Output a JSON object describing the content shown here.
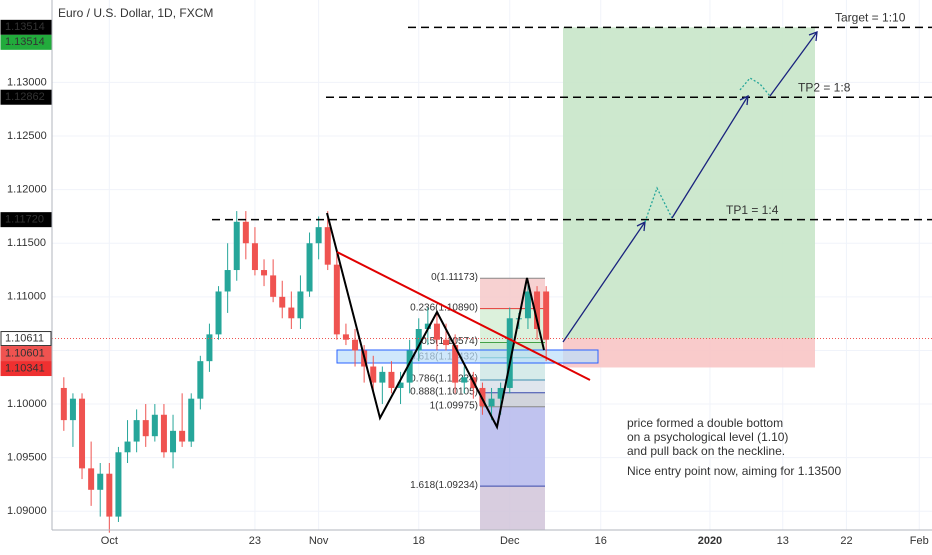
{
  "chart_data": {
    "type": "candlestick",
    "title": "Euro / U.S. Dollar, 1D, FXCM",
    "up_color": "#26a69a",
    "down_color": "#ef5350",
    "open": [
      1.1015,
      1.0985,
      1.1005,
      1.094,
      1.092,
      1.0935,
      1.0895,
      1.0955,
      1.0965,
      1.0985,
      1.097,
      1.099,
      1.0955,
      1.0975,
      1.0965,
      1.1005,
      1.104,
      1.1065,
      1.1105,
      1.1125,
      1.117,
      1.115,
      1.1125,
      1.112,
      1.11,
      1.109,
      1.108,
      1.1105,
      1.115,
      1.1165,
      1.113,
      1.1065,
      1.106,
      1.105,
      1.1035,
      1.102,
      1.103,
      1.1015,
      1.102,
      1.105,
      1.107,
      1.1075,
      1.106,
      1.1055,
      1.102,
      1.1025,
      1.1015,
      1.0998,
      1.1005,
      1.1015,
      1.108,
      1.108,
      1.1105,
      1.1105
    ],
    "high": [
      1.1025,
      1.101,
      1.101,
      1.0965,
      1.0945,
      1.0945,
      1.096,
      1.0985,
      1.0995,
      1.1,
      1.1,
      1.1,
      1.099,
      1.101,
      1.101,
      1.1045,
      1.1075,
      1.111,
      1.115,
      1.118,
      1.118,
      1.1165,
      1.1135,
      1.1135,
      1.1115,
      1.1105,
      1.112,
      1.116,
      1.1175,
      1.118,
      1.114,
      1.1075,
      1.107,
      1.1055,
      1.1045,
      1.1035,
      1.104,
      1.103,
      1.106,
      1.108,
      1.109,
      1.1085,
      1.1075,
      1.1065,
      1.1035,
      1.103,
      1.102,
      1.1015,
      1.102,
      1.109,
      1.1085,
      1.1115,
      1.111,
      1.111
    ],
    "low": [
      1.0975,
      1.096,
      1.093,
      1.0905,
      1.0895,
      1.088,
      1.089,
      1.0945,
      1.0955,
      1.096,
      1.0965,
      1.095,
      1.094,
      1.096,
      1.096,
      1.0995,
      1.103,
      1.106,
      1.1085,
      1.1115,
      1.1135,
      1.112,
      1.111,
      1.1095,
      1.108,
      1.107,
      1.107,
      1.11,
      1.1135,
      1.1125,
      1.106,
      1.1055,
      1.1035,
      1.102,
      1.101,
      1.1,
      1.101,
      1.1,
      1.101,
      1.104,
      1.1055,
      1.105,
      1.105,
      1.101,
      1.101,
      1.1005,
      1.099,
      1.0985,
      1.099,
      1.101,
      1.107,
      1.107,
      1.106,
      1.104
    ],
    "close": [
      1.0985,
      1.1005,
      1.094,
      1.092,
      1.0935,
      1.0895,
      1.0955,
      1.0965,
      1.0985,
      1.097,
      1.099,
      1.0955,
      1.0975,
      1.0965,
      1.1005,
      1.104,
      1.1065,
      1.1105,
      1.1125,
      1.117,
      1.115,
      1.1125,
      1.112,
      1.11,
      1.109,
      1.108,
      1.1105,
      1.115,
      1.1165,
      1.113,
      1.1065,
      1.106,
      1.105,
      1.1035,
      1.102,
      1.103,
      1.1015,
      1.102,
      1.105,
      1.107,
      1.1075,
      1.106,
      1.1055,
      1.102,
      1.1025,
      1.1015,
      1.0998,
      1.1005,
      1.1015,
      1.108,
      1.108,
      1.1105,
      1.107,
      1.106
    ],
    "xlim": [
      -1.3,
      95.4
    ],
    "xticks": [
      {
        "value": 5,
        "label": "Oct"
      },
      {
        "value": 21,
        "label": "23"
      },
      {
        "value": 28,
        "label": "Nov"
      },
      {
        "value": 39,
        "label": "18"
      },
      {
        "value": 49,
        "label": "Dec"
      },
      {
        "value": 59,
        "label": "16"
      },
      {
        "value": 71,
        "label": "2020"
      },
      {
        "value": 79,
        "label": "13"
      },
      {
        "value": 86,
        "label": "22"
      },
      {
        "value": 94,
        "label": "Feb"
      }
    ],
    "ylim": [
      1.08825,
      1.13769
    ],
    "yticks": [
      {
        "value": 1.09,
        "label": "1.09000"
      },
      {
        "value": 1.095,
        "label": "1.09500"
      },
      {
        "value": 1.1,
        "label": "1.10000"
      },
      {
        "value": 1.105,
        "label": "1.10500"
      },
      {
        "value": 1.11,
        "label": "1.11000"
      },
      {
        "value": 1.115,
        "label": "1.11500"
      },
      {
        "value": 1.12,
        "label": "1.12000"
      },
      {
        "value": 1.125,
        "label": "1.12500"
      },
      {
        "value": 1.13,
        "label": "1.13000"
      }
    ],
    "grid": true,
    "price_markers": [
      {
        "value": 1.13514,
        "label": "1.13514",
        "color": "#000000"
      },
      {
        "value": 1.13514,
        "label": "1.13514",
        "color": "#22ab3c"
      },
      {
        "value": 1.12862,
        "label": "1.12862",
        "color": "#000000"
      },
      {
        "value": 1.1172,
        "label": "1.11720",
        "color": "#000000"
      },
      {
        "value": 1.10611,
        "label": "1.10611",
        "color": "#ffffff"
      },
      {
        "value": 1.10601,
        "label": "1.10601",
        "color": "#ef5350"
      },
      {
        "value": 1.10341,
        "label": "1.10341",
        "color": "#ef3030"
      }
    ],
    "targets": [
      {
        "label": "Target = 1:10",
        "value": 1.13514
      },
      {
        "label": "TP2 = 1:8",
        "value": 1.12862
      },
      {
        "label": "TP1 = 1:4",
        "value": 1.1172
      }
    ],
    "fib_levels": [
      {
        "label": "0(1.11173)",
        "value": 1.11173,
        "color": "#888888"
      },
      {
        "label": "0.236(1.10890)",
        "value": 1.1089,
        "color": "#e53935"
      },
      {
        "label": "0.5(1.10574)",
        "value": 1.10574,
        "color": "#43a047"
      },
      {
        "label": "0.618(1.10432)",
        "value": 1.10432,
        "color": "#009688"
      },
      {
        "label": "0.786(1.10224)",
        "value": 1.10224,
        "color": "#3f8fb0"
      },
      {
        "label": "0.888(1.10105)",
        "value": 1.10105,
        "color": "#3949ab"
      },
      {
        "label": "1(1.09975)",
        "value": 1.09975,
        "color": "#888888"
      },
      {
        "label": "1.618(1.09234)",
        "value": 1.09234,
        "color": "#3949ab"
      }
    ],
    "note": [
      "price formed a double bottom",
      "on a psychological level (1.10)",
      "and pull back on the neckline.",
      "Nice entry point now, aiming for 1.13500"
    ]
  }
}
